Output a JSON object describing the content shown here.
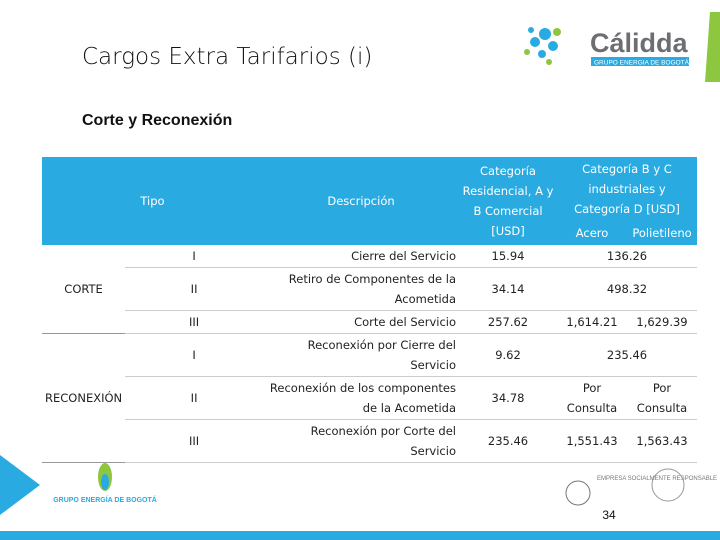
{
  "header": {
    "title": "Cargos Extra Tarifarios (i)",
    "subtitle": "Corte y Reconexión",
    "logo": {
      "name": "Cálidda",
      "tagline": "GRUPO ENERGIA DE BOGOTÁ"
    }
  },
  "table": {
    "columns": {
      "tipo": "Tipo",
      "descripcion": "Descripción",
      "cat_a": "Categoría Residencial, A y B Comercial [USD]",
      "cat_bcd": "Categoría B y C industriales y Categoría D [USD]",
      "acero": "Acero",
      "polietileno": "Polietileno"
    },
    "groups": [
      {
        "label": "CORTE",
        "rows": [
          {
            "tipo": "I",
            "descripcion": "Cierre del Servicio",
            "cat_a": "15.94",
            "bcd": "136.26"
          },
          {
            "tipo": "II",
            "descripcion": "Retiro de Componentes de la Acometida",
            "cat_a": "34.14",
            "bcd": "498.32"
          },
          {
            "tipo": "III",
            "descripcion": "Corte del Servicio",
            "cat_a": "257.62",
            "acero": "1,614.21",
            "polietileno": "1,629.39"
          }
        ]
      },
      {
        "label": "RECONEXIÓN",
        "rows": [
          {
            "tipo": "I",
            "descripcion": "Reconexión por Cierre del Servicio",
            "cat_a": "9.62",
            "bcd": "235.46"
          },
          {
            "tipo": "II",
            "descripcion": "Reconexión de los componentes de la Acometida",
            "cat_a": "34.78",
            "acero": "Por Consulta",
            "polietileno": "Por Consulta"
          },
          {
            "tipo": "III",
            "descripcion": "Reconexión por Corte del Servicio",
            "cat_a": "235.46",
            "acero": "1,551.43",
            "polietileno": "1,563.43"
          }
        ]
      }
    ]
  },
  "footer": {
    "left_logo": "GRUPO ENERGÍA DE BOGOTÁ",
    "esr": "EMPRESA SOCIALMENTE RESPONSABLE",
    "page": "34"
  }
}
